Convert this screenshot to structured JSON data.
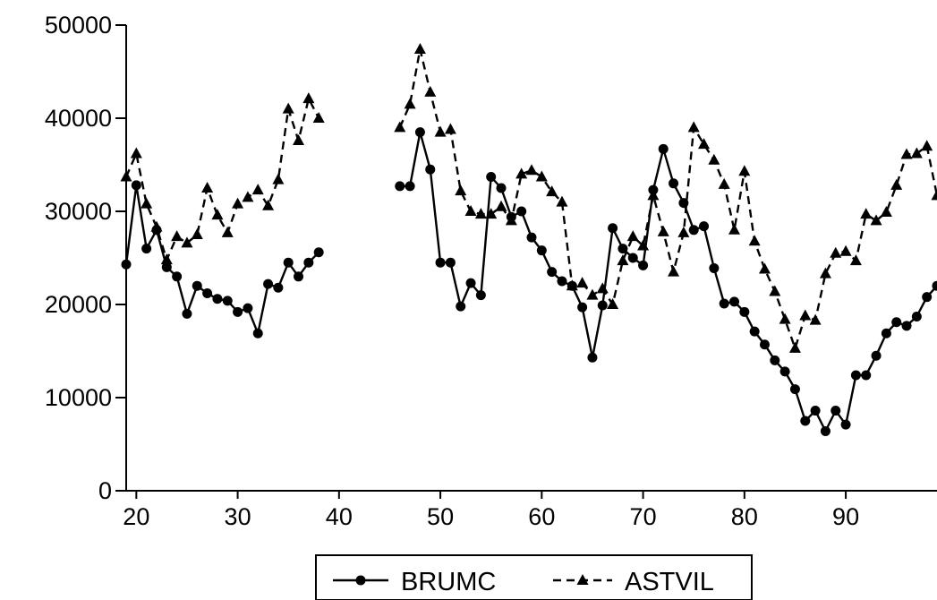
{
  "chart_data": {
    "type": "line",
    "xlim": [
      19,
      99
    ],
    "ylim": [
      0,
      50000
    ],
    "xticks": [
      20,
      30,
      40,
      50,
      60,
      70,
      80,
      90
    ],
    "yticks": [
      0,
      10000,
      20000,
      30000,
      40000,
      50000
    ],
    "xtick_labels": [
      "20",
      "30",
      "40",
      "50",
      "60",
      "70",
      "80",
      "90"
    ],
    "ytick_labels": [
      "0",
      "10000",
      "20000",
      "30000",
      "40000",
      "50000"
    ],
    "grid": false,
    "legend_position": "bottom-center",
    "series": [
      {
        "name": "BRUMC",
        "marker": "circle",
        "line_style": "solid",
        "color": "#000000",
        "x": [
          19,
          20,
          21,
          22,
          23,
          24,
          25,
          26,
          27,
          28,
          29,
          30,
          31,
          32,
          33,
          34,
          35,
          36,
          37,
          38,
          46,
          47,
          48,
          49,
          50,
          51,
          52,
          53,
          54,
          55,
          56,
          57,
          58,
          59,
          60,
          61,
          62,
          63,
          64,
          65,
          66,
          67,
          68,
          69,
          70,
          71,
          72,
          73,
          74,
          75,
          76,
          77,
          78,
          79,
          80,
          81,
          82,
          83,
          84,
          85,
          86,
          87,
          88,
          89,
          90,
          91,
          92,
          93,
          94,
          95,
          96,
          97,
          98,
          99
        ],
        "y": [
          24300,
          32800,
          26000,
          28000,
          24000,
          23000,
          19000,
          22000,
          21200,
          20600,
          20400,
          19200,
          19600,
          16900,
          22200,
          21800,
          24500,
          23000,
          24500,
          25600,
          32700,
          32700,
          38500,
          34500,
          24500,
          24500,
          19800,
          22300,
          21000,
          33700,
          32500,
          29400,
          30000,
          27200,
          25800,
          23500,
          22500,
          22000,
          19700,
          14300,
          19900,
          28200,
          26000,
          25000,
          24200,
          32300,
          36700,
          33000,
          30900,
          28000,
          28400,
          23900,
          20100,
          20300,
          19200,
          17100,
          15700,
          14000,
          12800,
          10900,
          7500,
          8600,
          6400,
          8600,
          7100,
          12400,
          12400,
          14500,
          16900,
          18100,
          17700,
          18700,
          20800,
          22000
        ]
      },
      {
        "name": "ASTVIL",
        "marker": "triangle",
        "line_style": "dashed",
        "color": "#000000",
        "x": [
          19,
          20,
          21,
          22,
          23,
          24,
          25,
          26,
          27,
          28,
          29,
          30,
          31,
          32,
          33,
          34,
          35,
          36,
          37,
          38,
          46,
          47,
          48,
          49,
          50,
          51,
          52,
          53,
          54,
          55,
          56,
          57,
          58,
          59,
          60,
          61,
          62,
          63,
          64,
          65,
          66,
          67,
          68,
          69,
          70,
          71,
          72,
          73,
          74,
          75,
          76,
          77,
          78,
          79,
          80,
          81,
          82,
          83,
          84,
          85,
          86,
          87,
          88,
          89,
          90,
          91,
          92,
          93,
          94,
          95,
          96,
          97,
          98,
          99
        ],
        "y": [
          33700,
          36200,
          30800,
          28300,
          24800,
          27300,
          26600,
          27500,
          32500,
          29600,
          27700,
          30800,
          31500,
          32300,
          30600,
          33400,
          41000,
          37600,
          42100,
          40000,
          39000,
          41500,
          47400,
          42800,
          38500,
          38800,
          32200,
          30000,
          29700,
          29700,
          30500,
          29000,
          34000,
          34400,
          33700,
          32100,
          31000,
          22000,
          22300,
          21000,
          21700,
          20000,
          24700,
          27300,
          26300,
          31700,
          27800,
          23500,
          27700,
          39000,
          37200,
          35500,
          32900,
          28000,
          34300,
          26800,
          23800,
          21400,
          18400,
          15300,
          18800,
          18300,
          23300,
          25500,
          25700,
          24700,
          29700,
          29000,
          29900,
          32800,
          36100,
          36200,
          37000,
          31700
        ]
      }
    ]
  }
}
